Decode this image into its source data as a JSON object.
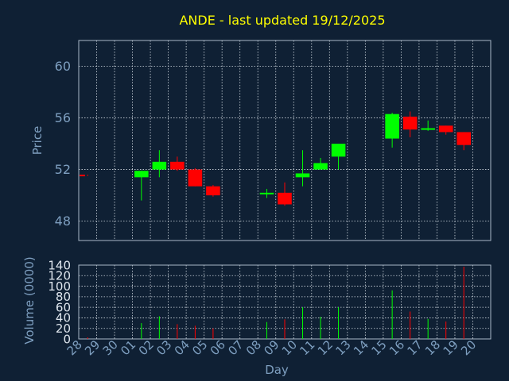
{
  "chart_data": {
    "type": "candlestick",
    "title": "ANDE - last updated 19/12/2025",
    "xlabel": "Day",
    "x_ticks": [
      "28",
      "29",
      "30",
      "01",
      "02",
      "03",
      "04",
      "05",
      "06",
      "07",
      "08",
      "09",
      "10",
      "11",
      "12",
      "13",
      "14",
      "15",
      "16",
      "17",
      "18",
      "19",
      "20"
    ],
    "price_panel": {
      "ylabel": "Price",
      "ylim": [
        46.5,
        62
      ],
      "y_ticks": [
        "48",
        "52",
        "56",
        "60"
      ],
      "candles": [
        {
          "day": "28",
          "open": 51.6,
          "high": 51.6,
          "low": 51.5,
          "close": 51.5
        },
        {
          "day": "01",
          "open": 51.4,
          "high": 51.9,
          "low": 49.6,
          "close": 51.9
        },
        {
          "day": "02",
          "open": 52.0,
          "high": 53.5,
          "low": 51.4,
          "close": 52.6
        },
        {
          "day": "03",
          "open": 52.6,
          "high": 53.0,
          "low": 51.9,
          "close": 52.0
        },
        {
          "day": "04",
          "open": 52.0,
          "high": 52.1,
          "low": 50.7,
          "close": 50.7
        },
        {
          "day": "05",
          "open": 50.7,
          "high": 50.8,
          "low": 49.9,
          "close": 50.0
        },
        {
          "day": "08",
          "open": 50.2,
          "high": 50.5,
          "low": 49.8,
          "close": 50.2
        },
        {
          "day": "09",
          "open": 50.2,
          "high": 51.0,
          "low": 49.2,
          "close": 49.3
        },
        {
          "day": "10",
          "open": 51.4,
          "high": 53.5,
          "low": 50.7,
          "close": 51.7
        },
        {
          "day": "11",
          "open": 52.0,
          "high": 52.9,
          "low": 52.0,
          "close": 52.5
        },
        {
          "day": "12",
          "open": 53.0,
          "high": 54.0,
          "low": 52.0,
          "close": 54.0
        },
        {
          "day": "15",
          "open": 54.4,
          "high": 56.4,
          "low": 53.7,
          "close": 56.3
        },
        {
          "day": "16",
          "open": 56.1,
          "high": 56.5,
          "low": 54.5,
          "close": 55.1
        },
        {
          "day": "17",
          "open": 55.1,
          "high": 55.8,
          "low": 55.0,
          "close": 55.2
        },
        {
          "day": "18",
          "open": 55.4,
          "high": 55.4,
          "low": 54.7,
          "close": 54.9
        },
        {
          "day": "19",
          "open": 54.9,
          "high": 54.9,
          "low": 53.5,
          "close": 53.9
        }
      ]
    },
    "volume_panel": {
      "ylabel": "Volume (0000)",
      "ylim": [
        0,
        140
      ],
      "y_ticks": [
        "0",
        "20",
        "40",
        "60",
        "80",
        "100",
        "120",
        "140"
      ],
      "bars": [
        {
          "day": "28",
          "value": 3,
          "direction": "down"
        },
        {
          "day": "01",
          "value": 30,
          "direction": "up"
        },
        {
          "day": "02",
          "value": 43,
          "direction": "up"
        },
        {
          "day": "03",
          "value": 28,
          "direction": "down"
        },
        {
          "day": "04",
          "value": 25,
          "direction": "down"
        },
        {
          "day": "05",
          "value": 20,
          "direction": "down"
        },
        {
          "day": "08",
          "value": 32,
          "direction": "up"
        },
        {
          "day": "09",
          "value": 37,
          "direction": "down"
        },
        {
          "day": "10",
          "value": 60,
          "direction": "up"
        },
        {
          "day": "11",
          "value": 42,
          "direction": "up"
        },
        {
          "day": "12",
          "value": 60,
          "direction": "up"
        },
        {
          "day": "15",
          "value": 92,
          "direction": "up"
        },
        {
          "day": "16",
          "value": 52,
          "direction": "down"
        },
        {
          "day": "17",
          "value": 38,
          "direction": "up"
        },
        {
          "day": "18",
          "value": 33,
          "direction": "down"
        },
        {
          "day": "19",
          "value": 137,
          "direction": "down"
        }
      ]
    },
    "grid": true,
    "colors": {
      "background": "#0f2034",
      "title": "#ffff00",
      "axis_text": "#7e9fc0",
      "frame": "#aab8c8",
      "grid": "#d0d8e0",
      "up": "#00ff00",
      "down": "#ff0000"
    }
  }
}
